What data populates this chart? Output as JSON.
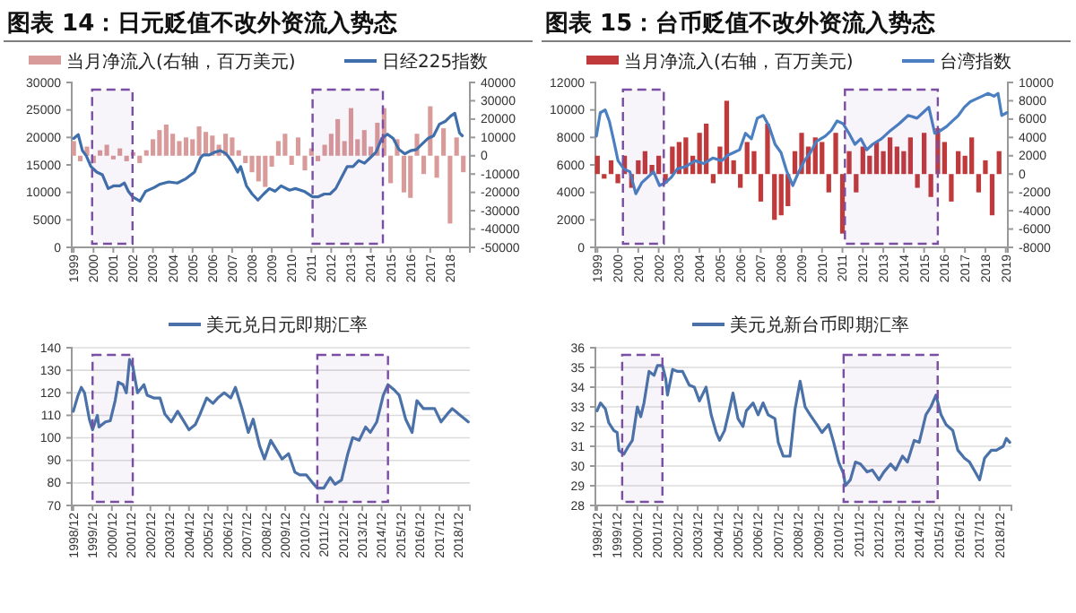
{
  "chart_data": [
    {
      "type": "line",
      "title": "图表 14：日元贬值不改外资流入势态",
      "legend": "top",
      "grid": false,
      "xlim": [
        1998.9,
        2019.0
      ],
      "xticks": [
        1999,
        2000,
        2001,
        2002,
        2003,
        2004,
        2005,
        2006,
        2007,
        2008,
        2009,
        2010,
        2011,
        2012,
        2013,
        2014,
        2015,
        2016,
        2017,
        2018
      ],
      "ylim": [
        0,
        30000
      ],
      "yticks": [
        0,
        5000,
        10000,
        15000,
        20000,
        25000,
        30000
      ],
      "y2lim": [
        -50000,
        40000
      ],
      "y2ticks": [
        -50000,
        -40000,
        -30000,
        -20000,
        -10000,
        0,
        10000,
        20000,
        30000,
        40000
      ],
      "series": [
        {
          "name": "当月净流入(右轴，百万美元)",
          "type": "bar",
          "axis": "y2",
          "color": "#d99a9a",
          "x": [
            1999,
            1999.33,
            1999.67,
            2000,
            2000.33,
            2000.67,
            2001,
            2001.33,
            2001.67,
            2002,
            2002.33,
            2002.67,
            2003,
            2003.33,
            2003.67,
            2004,
            2004.33,
            2004.67,
            2005,
            2005.33,
            2005.67,
            2006,
            2006.33,
            2006.67,
            2007,
            2007.33,
            2007.67,
            2008,
            2008.33,
            2008.67,
            2009,
            2009.33,
            2009.67,
            2010,
            2010.33,
            2010.67,
            2011,
            2011.33,
            2011.67,
            2012,
            2012.33,
            2012.67,
            2013,
            2013.33,
            2013.67,
            2014,
            2014.33,
            2014.67,
            2015,
            2015.33,
            2015.67,
            2016,
            2016.33,
            2016.67,
            2017,
            2017.33,
            2017.67,
            2018,
            2018.33,
            2018.67
          ],
          "values": [
            8000,
            -3000,
            5000,
            -4000,
            3000,
            6000,
            -2000,
            4000,
            -3000,
            2000,
            -4000,
            3000,
            9000,
            14000,
            17000,
            12000,
            8000,
            10000,
            9000,
            16000,
            13000,
            11000,
            6000,
            12000,
            10000,
            3000,
            -4000,
            -9000,
            -14000,
            -17000,
            -6000,
            8000,
            12000,
            -5000,
            10000,
            -8000,
            4000,
            -3000,
            6000,
            12000,
            20000,
            8000,
            26000,
            9000,
            14000,
            5000,
            18000,
            26000,
            -15000,
            9000,
            -20000,
            -23000,
            12000,
            -10000,
            27000,
            -12000,
            15000,
            -37000,
            10000,
            -9000
          ]
        },
        {
          "name": "日经225指数",
          "axis": "y",
          "color": "#3f6faa",
          "x": [
            1999.0,
            1999.23,
            1999.44,
            1999.64,
            1999.87,
            2000.16,
            2000.45,
            2000.74,
            2001.03,
            2001.33,
            2001.56,
            2001.76,
            2001.97,
            2002.34,
            2002.63,
            2003.07,
            2003.36,
            2003.8,
            2004.23,
            2004.67,
            2005.1,
            2005.4,
            2005.54,
            2005.83,
            2006.12,
            2006.41,
            2006.7,
            2006.99,
            2007.28,
            2007.43,
            2007.72,
            2008.01,
            2008.3,
            2008.59,
            2008.88,
            2009.17,
            2009.47,
            2009.9,
            2010.19,
            2010.63,
            2011.06,
            2011.35,
            2011.65,
            2011.94,
            2012.23,
            2012.52,
            2012.81,
            2013.1,
            2013.39,
            2013.68,
            2013.97,
            2014.26,
            2014.55,
            2014.84,
            2015.13,
            2015.42,
            2015.72,
            2016.01,
            2016.3,
            2016.59,
            2016.88,
            2017.17,
            2017.46,
            2017.75,
            2018.04,
            2018.24,
            2018.48,
            2018.62
          ],
          "values": [
            19800,
            20500,
            17600,
            16600,
            14700,
            13700,
            13200,
            10700,
            11200,
            11200,
            11700,
            10200,
            9200,
            8400,
            10200,
            10900,
            11500,
            11900,
            11700,
            12500,
            13700,
            16300,
            16800,
            16800,
            17300,
            17600,
            17000,
            15600,
            13700,
            14700,
            11200,
            9700,
            8600,
            9700,
            10700,
            10200,
            11200,
            10400,
            10700,
            10200,
            9200,
            9200,
            9700,
            9700,
            10700,
            12700,
            14700,
            14700,
            15800,
            15300,
            16300,
            17300,
            19800,
            20600,
            19800,
            17800,
            17000,
            17600,
            17800,
            18800,
            19800,
            20300,
            22400,
            22900,
            23900,
            24400,
            20800,
            20300
          ]
        }
      ],
      "bands": [
        {
          "axis": "x",
          "from": 1999.93,
          "to": 2001.97,
          "color": "#7a4ea3"
        },
        {
          "axis": "x",
          "from": 2011.06,
          "to": 2014.61,
          "color": "#7a4ea3"
        }
      ]
    },
    {
      "type": "line",
      "title": "图表 15：台币贬值不改外资流入势态",
      "legend": "top",
      "grid": false,
      "xlim": [
        1998.9,
        2019.1
      ],
      "xticks": [
        1999,
        2000,
        2001,
        2002,
        2003,
        2004,
        2005,
        2006,
        2007,
        2008,
        2009,
        2010,
        2011,
        2012,
        2013,
        2014,
        2015,
        2016,
        2017,
        2018,
        2019
      ],
      "ylim": [
        0,
        12000
      ],
      "yticks": [
        0,
        2000,
        4000,
        6000,
        8000,
        10000,
        12000
      ],
      "y2lim": [
        -8000,
        10000
      ],
      "y2ticks": [
        -8000,
        -6000,
        -4000,
        -2000,
        0,
        2000,
        4000,
        6000,
        8000,
        10000
      ],
      "series": [
        {
          "name": "当月净流入(右轴，百万美元)",
          "type": "bar",
          "axis": "y2",
          "color": "#c0393b",
          "x": [
            1999,
            1999.33,
            1999.67,
            2000,
            2000.33,
            2000.67,
            2001,
            2001.33,
            2001.67,
            2002,
            2002.33,
            2002.67,
            2003,
            2003.33,
            2003.67,
            2004,
            2004.33,
            2004.67,
            2005,
            2005.33,
            2005.67,
            2006,
            2006.33,
            2006.67,
            2007,
            2007.33,
            2007.67,
            2008,
            2008.33,
            2008.67,
            2009,
            2009.33,
            2009.67,
            2010,
            2010.33,
            2010.67,
            2011,
            2011.33,
            2011.67,
            2012,
            2012.33,
            2012.67,
            2013,
            2013.33,
            2013.67,
            2014,
            2014.33,
            2014.67,
            2015,
            2015.33,
            2015.67,
            2016,
            2016.33,
            2016.67,
            2017,
            2017.33,
            2017.67,
            2018,
            2018.33,
            2018.67
          ],
          "values": [
            2000,
            -500,
            1500,
            -1000,
            2000,
            -1500,
            1500,
            2500,
            1000,
            2000,
            -1000,
            3000,
            3500,
            4000,
            2000,
            4500,
            5500,
            -1000,
            3000,
            8000,
            1500,
            -1500,
            3500,
            2500,
            -3000,
            5500,
            -5000,
            -4500,
            -3500,
            2500,
            4500,
            3000,
            4000,
            3500,
            -2000,
            4500,
            -6500,
            2500,
            -2000,
            3000,
            2000,
            3500,
            2500,
            4000,
            3000,
            2500,
            4000,
            -1500,
            4500,
            -2500,
            5000,
            3500,
            -3000,
            2500,
            2000,
            4000,
            -2000,
            1500,
            -4500,
            2500
          ]
        },
        {
          "name": "台湾指数",
          "axis": "y",
          "color": "#4a7fc1",
          "x": [
            1998.95,
            1999.14,
            1999.38,
            1999.58,
            1999.78,
            2000.01,
            2000.3,
            2000.59,
            2000.88,
            2001.17,
            2001.46,
            2001.75,
            2002.04,
            2002.33,
            2002.62,
            2002.91,
            2003.35,
            2003.78,
            2004.22,
            2004.65,
            2005.09,
            2005.38,
            2005.67,
            2005.96,
            2006.25,
            2006.54,
            2006.83,
            2007.12,
            2007.41,
            2007.7,
            2007.99,
            2008.28,
            2008.57,
            2008.86,
            2009.14,
            2009.43,
            2009.72,
            2010.16,
            2010.45,
            2010.74,
            2011.03,
            2011.32,
            2011.61,
            2011.9,
            2012.19,
            2012.48,
            2012.91,
            2013.35,
            2013.78,
            2014.22,
            2014.65,
            2014.94,
            2015.23,
            2015.52,
            2015.81,
            2016.1,
            2016.39,
            2016.68,
            2016.97,
            2017.26,
            2017.55,
            2017.84,
            2018.13,
            2018.42,
            2018.62,
            2018.8,
            2019.05
          ],
          "values": [
            8100,
            9800,
            10000,
            9200,
            7900,
            6300,
            5700,
            5500,
            3900,
            4700,
            5100,
            5500,
            4500,
            4700,
            5100,
            5700,
            5900,
            6300,
            6100,
            6500,
            6300,
            6700,
            6900,
            7100,
            8300,
            7900,
            9400,
            9600,
            8800,
            7500,
            6900,
            5500,
            4500,
            5500,
            6300,
            6900,
            7700,
            8100,
            8500,
            9200,
            9000,
            8300,
            7500,
            7900,
            7100,
            7500,
            7900,
            8500,
            9000,
            9600,
            9400,
            9800,
            10200,
            8300,
            8500,
            8800,
            9200,
            9600,
            10200,
            10600,
            10800,
            11000,
            11200,
            11000,
            11200,
            9600,
            9800
          ]
        }
      ],
      "bands": [
        {
          "axis": "x",
          "from": 2000.25,
          "to": 2002.25,
          "color": "#7a4ea3"
        },
        {
          "axis": "x",
          "from": 2011.12,
          "to": 2015.67,
          "color": "#7a4ea3"
        }
      ]
    },
    {
      "type": "line",
      "legend": "top",
      "grid": "y",
      "xlim": [
        "1998-11",
        "2019-07"
      ],
      "xticks": [
        {
          "value": "1998-12",
          "label": "1998/12"
        },
        {
          "value": "1999-12",
          "label": "1999/12"
        },
        {
          "value": "2000-12",
          "label": "2000/12"
        },
        {
          "value": "2001-12",
          "label": "2001/12"
        },
        {
          "value": "2002-12",
          "label": "2002/12"
        },
        {
          "value": "2003-12",
          "label": "2003/12"
        },
        {
          "value": "2004-12",
          "label": "2004/12"
        },
        {
          "value": "2005-12",
          "label": "2005/12"
        },
        {
          "value": "2006-12",
          "label": "2006/12"
        },
        {
          "value": "2007-12",
          "label": "2007/12"
        },
        {
          "value": "2008-12",
          "label": "2008/12"
        },
        {
          "value": "2009-12",
          "label": "2009/12"
        },
        {
          "value": "2010-12",
          "label": "2010/12"
        },
        {
          "value": "2011-12",
          "label": "2011/12"
        },
        {
          "value": "2012-12",
          "label": "2012/12"
        },
        {
          "value": "2013-12",
          "label": "2013/12"
        },
        {
          "value": "2014-12",
          "label": "2014/12"
        },
        {
          "value": "2015-12",
          "label": "2015/12"
        },
        {
          "value": "2016-12",
          "label": "2016/12"
        },
        {
          "value": "2017-12",
          "label": "2017/12"
        },
        {
          "value": "2018-12",
          "label": "2018/12"
        }
      ],
      "ylim": [
        70,
        140
      ],
      "yticks": [
        70,
        80,
        90,
        100,
        110,
        120,
        130,
        140
      ],
      "series": [
        {
          "name": "美元兑日元即期汇率",
          "color": "#4a72a8",
          "x": [
            "1998-12",
            "1999-03",
            "1999-05",
            "1999-07",
            "1999-10",
            "1999-12",
            "2000-03",
            "2000-04",
            "2000-08",
            "2000-11",
            "2001-02",
            "2001-04",
            "2001-07",
            "2001-09",
            "2001-11",
            "2002-01",
            "2002-04",
            "2002-08",
            "2002-10",
            "2003-02",
            "2003-06",
            "2003-09",
            "2004-01",
            "2004-05",
            "2004-08",
            "2004-12",
            "2005-04",
            "2005-07",
            "2005-11",
            "2006-03",
            "2006-06",
            "2006-10",
            "2007-02",
            "2007-05",
            "2007-09",
            "2008-01",
            "2008-04",
            "2008-08",
            "2008-11",
            "2009-03",
            "2009-07",
            "2009-10",
            "2010-02",
            "2010-06",
            "2010-09",
            "2011-01",
            "2011-05",
            "2011-08",
            "2011-12",
            "2012-04",
            "2012-07",
            "2012-11",
            "2013-03",
            "2013-06",
            "2013-10",
            "2014-02",
            "2014-05",
            "2014-09",
            "2015-01",
            "2015-04",
            "2015-08",
            "2015-11",
            "2016-03",
            "2016-07",
            "2016-10",
            "2017-02",
            "2017-06",
            "2017-09",
            "2018-01",
            "2018-05",
            "2018-08",
            "2018-12",
            "2019-04",
            "2019-06"
          ],
          "values": [
            111.8,
            118.9,
            122.4,
            120,
            108.3,
            103.6,
            110,
            104.8,
            107.1,
            107.6,
            116.5,
            124.7,
            123.6,
            120,
            134.8,
            131.8,
            120,
            123.6,
            118.9,
            117.7,
            117.7,
            110.6,
            107.1,
            111.8,
            108.3,
            103.6,
            105.9,
            110.6,
            117.7,
            115.3,
            117.7,
            120,
            117.7,
            122.4,
            113,
            102.4,
            108.3,
            96.5,
            90.6,
            98.9,
            94.2,
            90.6,
            93,
            84.8,
            83.6,
            83.6,
            80.1,
            77.7,
            77.7,
            82.4,
            79.4,
            81.3,
            93,
            100.1,
            98.9,
            104.8,
            102.4,
            107.1,
            118.9,
            123.6,
            121.2,
            118.9,
            108.3,
            102.4,
            116.5,
            113,
            113,
            113,
            107.1,
            110.6,
            113,
            110.6,
            108.3,
            107.1
          ]
        }
      ],
      "bands": [
        {
          "axis": "x",
          "from": "1999-12",
          "to": "2002-01",
          "color": "#7a4ea3"
        },
        {
          "axis": "x",
          "from": "2011-08",
          "to": "2015-04",
          "color": "#7a4ea3"
        }
      ]
    },
    {
      "type": "line",
      "legend": "top",
      "grid": "y",
      "xlim": [
        "1998-11",
        "2019-07"
      ],
      "xticks": [
        {
          "value": "1998-12",
          "label": "1998/12"
        },
        {
          "value": "1999-12",
          "label": "1999/12"
        },
        {
          "value": "2000-12",
          "label": "2000/12"
        },
        {
          "value": "2001-12",
          "label": "2001/12"
        },
        {
          "value": "2002-12",
          "label": "2002/12"
        },
        {
          "value": "2003-12",
          "label": "2003/12"
        },
        {
          "value": "2004-12",
          "label": "2004/12"
        },
        {
          "value": "2005-12",
          "label": "2005/12"
        },
        {
          "value": "2006-12",
          "label": "2006/12"
        },
        {
          "value": "2007-12",
          "label": "2007/12"
        },
        {
          "value": "2008-12",
          "label": "2008/12"
        },
        {
          "value": "2009-12",
          "label": "2009/12"
        },
        {
          "value": "2010-12",
          "label": "2010/12"
        },
        {
          "value": "2011-12",
          "label": "2011/12"
        },
        {
          "value": "2012-12",
          "label": "2012/12"
        },
        {
          "value": "2013-12",
          "label": "2013/12"
        },
        {
          "value": "2014-12",
          "label": "2014/12"
        },
        {
          "value": "2015-12",
          "label": "2015/12"
        },
        {
          "value": "2016-12",
          "label": "2016/12"
        },
        {
          "value": "2017-12",
          "label": "2017/12"
        },
        {
          "value": "2018-12",
          "label": "2018/12"
        }
      ],
      "ylim": [
        28,
        36
      ],
      "yticks": [
        28,
        29,
        30,
        31,
        32,
        33,
        34,
        35,
        36
      ],
      "series": [
        {
          "name": "美元兑新台币即期汇率",
          "color": "#4a72a8",
          "x": [
            "1998-12",
            "1999-02",
            "1999-05",
            "1999-07",
            "1999-10",
            "1999-12",
            "2000-01",
            "2000-04",
            "2000-06",
            "2000-09",
            "2000-12",
            "2001-02",
            "2001-04",
            "2001-07",
            "2001-10",
            "2001-12",
            "2002-03",
            "2002-05",
            "2002-06",
            "2002-09",
            "2002-12",
            "2003-03",
            "2003-07",
            "2003-10",
            "2004-01",
            "2004-05",
            "2004-08",
            "2004-11",
            "2005-01",
            "2005-04",
            "2005-07",
            "2005-09",
            "2005-12",
            "2006-03",
            "2006-05",
            "2006-09",
            "2006-12",
            "2007-03",
            "2007-06",
            "2007-10",
            "2007-12",
            "2008-03",
            "2008-07",
            "2008-10",
            "2009-01",
            "2009-04",
            "2009-07",
            "2009-11",
            "2010-02",
            "2010-06",
            "2010-09",
            "2010-12",
            "2011-03",
            "2011-04",
            "2011-07",
            "2011-10",
            "2012-01",
            "2012-05",
            "2012-08",
            "2012-12",
            "2013-03",
            "2013-07",
            "2013-10",
            "2014-02",
            "2014-05",
            "2014-09",
            "2014-12",
            "2015-04",
            "2015-07",
            "2015-10",
            "2016-01",
            "2016-04",
            "2016-08",
            "2016-11",
            "2017-03",
            "2017-06",
            "2017-10",
            "2017-12",
            "2018-03",
            "2018-07",
            "2018-10",
            "2019-02",
            "2019-04",
            "2019-06"
          ],
          "values": [
            32.8,
            33.2,
            32.9,
            32.2,
            31.8,
            31.7,
            30.8,
            30.6,
            30.9,
            31.3,
            33.0,
            32.5,
            33.2,
            34.8,
            34.6,
            35.1,
            35.1,
            34.4,
            33.6,
            34.9,
            34.8,
            34.8,
            34.1,
            34.0,
            33.3,
            34.0,
            32.6,
            31.7,
            31.3,
            31.8,
            32.9,
            33.7,
            32.4,
            32.0,
            32.8,
            33.2,
            32.6,
            33.2,
            32.6,
            32.4,
            31.2,
            30.5,
            30.5,
            32.9,
            34.3,
            33.0,
            32.6,
            32.1,
            31.7,
            32.1,
            31.2,
            30.2,
            29.6,
            29.0,
            29.3,
            30.2,
            30.1,
            29.7,
            29.8,
            29.3,
            29.7,
            30.1,
            29.8,
            30.5,
            30.2,
            31.3,
            31.2,
            32.6,
            33.0,
            33.6,
            32.6,
            32.1,
            31.8,
            30.8,
            30.4,
            30.2,
            29.6,
            29.3,
            30.4,
            30.8,
            30.8,
            31.0,
            31.4,
            31.2
          ]
        }
      ],
      "bands": [
        {
          "axis": "x",
          "from": "2000-03",
          "to": "2002-03",
          "color": "#7a4ea3"
        },
        {
          "axis": "x",
          "from": "2011-03",
          "to": "2015-11",
          "color": "#7a4ea3"
        }
      ]
    }
  ]
}
